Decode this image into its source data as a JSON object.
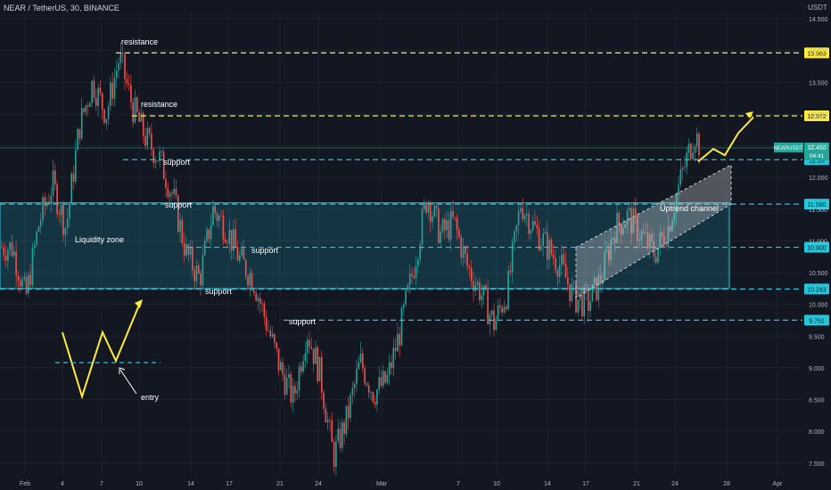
{
  "header": {
    "symbol": "NEAR / TetherUS, 30, BINANCE",
    "currency": "USDT"
  },
  "colors": {
    "background": "#131722",
    "up": "#26a69a",
    "down": "#ef5350",
    "resistance": "#ffeb3b",
    "support": "#26c6da",
    "zone": "#26c6da",
    "channel": "#d1d4dc",
    "arrow": "#ffeb3b",
    "price_tag": "#26a69a"
  },
  "chart_data": {
    "type": "candlestick",
    "symbol": "NEAR/USDT",
    "timeframe": "30",
    "exchange": "BINANCE",
    "ylim": [
      7.3,
      14.6
    ],
    "y_ticks": [
      7.5,
      8.0,
      8.5,
      9.0,
      9.5,
      10.0,
      10.5,
      11.0,
      11.5,
      12.0,
      12.5,
      13.0,
      13.5,
      14.0,
      14.5
    ],
    "x_ticks": [
      "Feb",
      "4",
      "7",
      "10",
      "14",
      "17",
      "21",
      "24",
      "Mar",
      "7",
      "10",
      "14",
      "17",
      "21",
      "24",
      "28",
      "Apr"
    ],
    "price_path": [
      [
        0,
        10.9
      ],
      [
        1,
        10.1
      ],
      [
        2,
        11.3
      ],
      [
        3,
        11.9
      ],
      [
        4,
        11.2
      ],
      [
        5,
        12.8
      ],
      [
        6,
        13.5
      ],
      [
        7,
        13.0
      ],
      [
        8,
        13.9
      ],
      [
        9,
        13.1
      ],
      [
        10,
        12.6
      ],
      [
        11,
        12.3
      ],
      [
        12,
        11.7
      ],
      [
        13,
        10.8
      ],
      [
        14,
        10.4
      ],
      [
        15,
        11.5
      ],
      [
        16,
        11.2
      ],
      [
        17,
        10.7
      ],
      [
        18,
        10.4
      ],
      [
        19,
        9.7
      ],
      [
        20,
        9.0
      ],
      [
        21,
        8.5
      ],
      [
        22,
        9.6
      ],
      [
        23,
        8.9
      ],
      [
        24,
        7.6
      ],
      [
        25,
        8.2
      ],
      [
        26,
        9.1
      ],
      [
        27,
        8.6
      ],
      [
        28,
        8.8
      ],
      [
        29,
        9.6
      ],
      [
        30,
        10.6
      ],
      [
        31,
        11.7
      ],
      [
        32,
        11.1
      ],
      [
        33,
        11.3
      ],
      [
        34,
        10.6
      ],
      [
        35,
        10.2
      ],
      [
        36,
        9.7
      ],
      [
        37,
        10.2
      ],
      [
        38,
        11.6
      ],
      [
        39,
        11.2
      ],
      [
        40,
        10.9
      ],
      [
        41,
        10.6
      ],
      [
        42,
        10.1
      ],
      [
        43,
        10.0
      ],
      [
        44,
        10.4
      ],
      [
        45,
        11.2
      ],
      [
        46,
        11.4
      ],
      [
        47,
        11.1
      ],
      [
        48,
        10.8
      ],
      [
        49,
        11.2
      ],
      [
        50,
        12.0
      ],
      [
        51,
        12.7
      ],
      [
        52,
        12.2
      ],
      [
        53,
        12.466
      ]
    ],
    "current_price": 12.466,
    "countdown": "04:41",
    "symbol_tag": "NEARUSDT",
    "levels": [
      {
        "type": "resistance",
        "value": 13.963,
        "label": "13.963"
      },
      {
        "type": "resistance",
        "value": 12.972,
        "label": "12.972"
      },
      {
        "type": "support",
        "value": 12.28,
        "label": "12.28"
      },
      {
        "type": "support",
        "value": 11.58,
        "label": "11.580"
      },
      {
        "type": "support",
        "value": 10.9,
        "label": "10.900"
      },
      {
        "type": "support",
        "value": 10.243,
        "label": "10.243"
      },
      {
        "type": "support",
        "value": 9.751,
        "label": "9.751"
      }
    ],
    "liquidity_zone": {
      "from": 10.25,
      "to": 11.6
    },
    "annotations": {
      "resistance_1": "resistance",
      "resistance_2": "resistance",
      "support_1": "support",
      "support_2": "support",
      "support_3": "support",
      "support_4": "support",
      "support_5": "support",
      "zone": "Liquidity zone",
      "channel": "Uptrend channel",
      "entry": "entry"
    }
  }
}
